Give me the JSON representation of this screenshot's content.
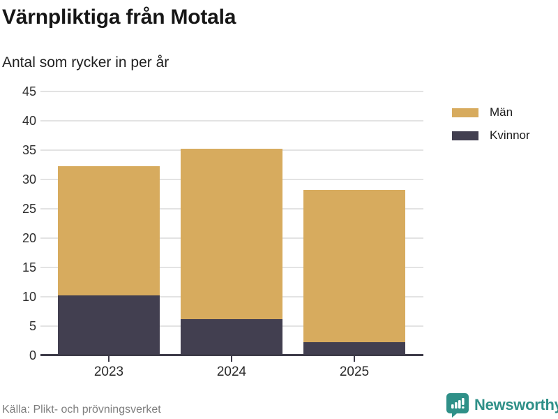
{
  "title": "Värnpliktiga från Motala",
  "subtitle": "Antal som rycker in per år",
  "source": "Källa: Plikt- och prövningsverket",
  "brand": {
    "name": "Newsworthy",
    "color": "#2f9088",
    "icon": "bar-chart-speech-bubble-icon"
  },
  "chart_data": {
    "type": "bar",
    "stacked": true,
    "title": "Värnpliktiga från Motala",
    "subtitle": "Antal som rycker in per år",
    "categories": [
      "2023",
      "2024",
      "2025"
    ],
    "series": [
      {
        "name": "Män",
        "color": "#d7ab5e",
        "values": [
          22,
          29,
          26
        ]
      },
      {
        "name": "Kvinnor",
        "color": "#423f50",
        "values": [
          10,
          6,
          2
        ]
      }
    ],
    "totals": [
      32,
      35,
      28
    ],
    "xlabel": "",
    "ylabel": "",
    "ylim": [
      0,
      45
    ],
    "yticks": [
      0,
      5,
      10,
      15,
      20,
      25,
      30,
      35,
      40,
      45
    ],
    "grid": true,
    "gridline_color": "#e3e3e3",
    "axis_color": "#3d3b48",
    "legend_position": "right"
  }
}
